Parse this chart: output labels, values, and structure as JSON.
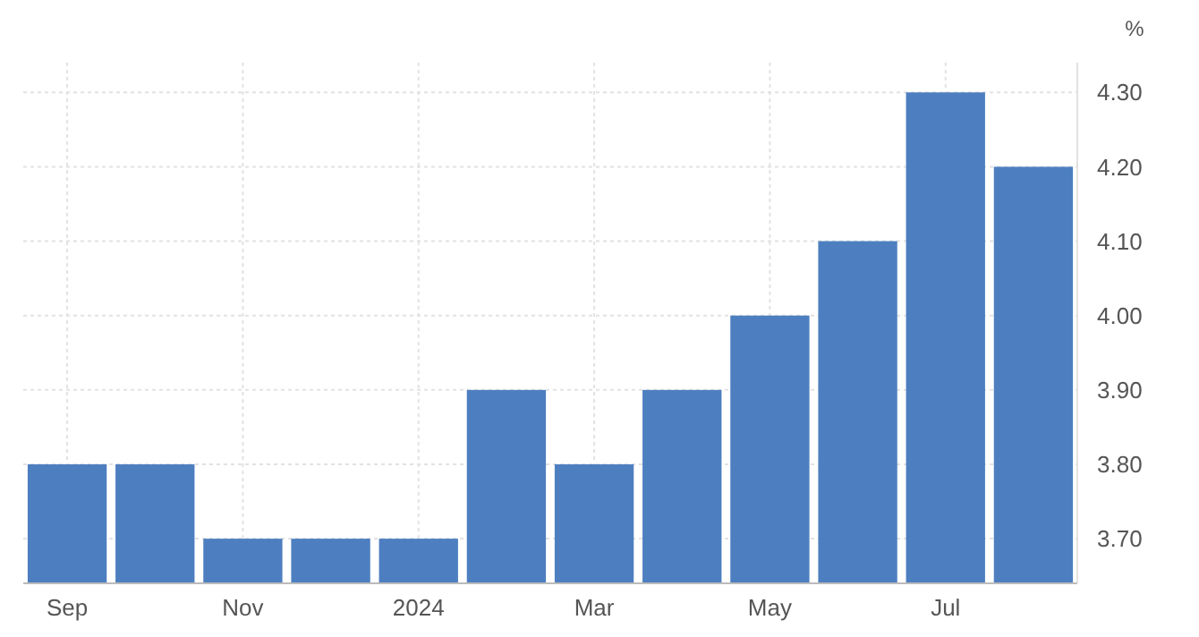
{
  "chart_data": {
    "type": "bar",
    "ylabel": "%",
    "categories": [
      "Sep",
      null,
      "Nov",
      null,
      "2024",
      null,
      "Mar",
      null,
      "May",
      null,
      "Jul",
      null
    ],
    "values": [
      3.8,
      3.8,
      3.7,
      3.7,
      3.7,
      3.9,
      3.8,
      3.9,
      4.0,
      4.1,
      4.3,
      4.2
    ],
    "color": "#4d7fc0",
    "ylim": [
      3.64,
      4.34
    ],
    "yticks": [
      {
        "value": 3.7,
        "label": "3.70"
      },
      {
        "value": 3.8,
        "label": "3.80"
      },
      {
        "value": 3.9,
        "label": "3.90"
      },
      {
        "value": 4.0,
        "label": "4.00"
      },
      {
        "value": 4.1,
        "label": "4.10"
      },
      {
        "value": 4.2,
        "label": "4.20"
      },
      {
        "value": 4.3,
        "label": "4.30"
      }
    ],
    "grid": true
  }
}
